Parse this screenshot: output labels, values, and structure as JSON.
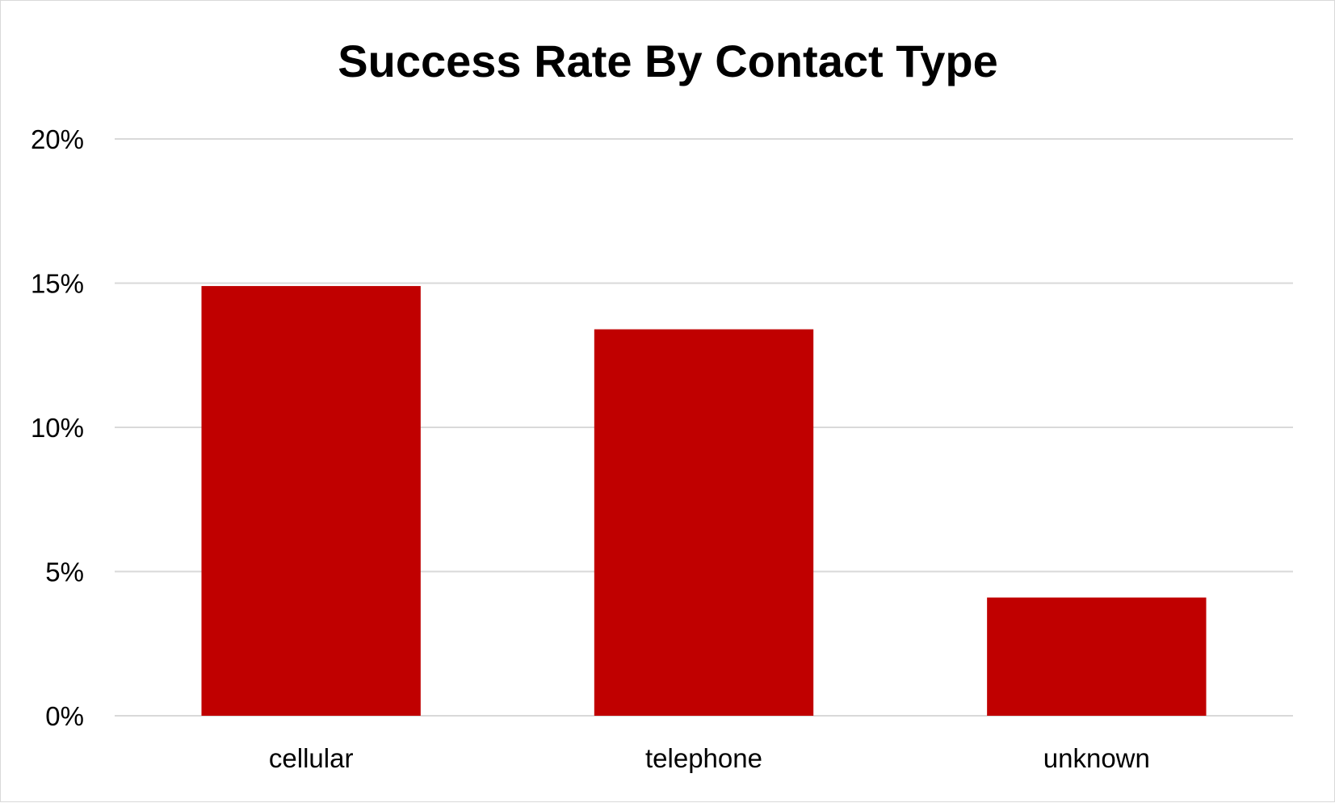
{
  "chart_data": {
    "type": "bar",
    "title": "Success Rate By Contact Type",
    "xlabel": "",
    "ylabel": "",
    "categories": [
      "cellular",
      "telephone",
      "unknown"
    ],
    "values": [
      0.149,
      0.134,
      0.041
    ],
    "ylim": [
      0,
      0.2
    ],
    "yticks": [
      0,
      0.05,
      0.1,
      0.15,
      0.2
    ],
    "ytick_labels": [
      "0%",
      "5%",
      "10%",
      "15%",
      "20%"
    ],
    "grid": true,
    "legend": "none",
    "bar_color": "#C00000"
  }
}
